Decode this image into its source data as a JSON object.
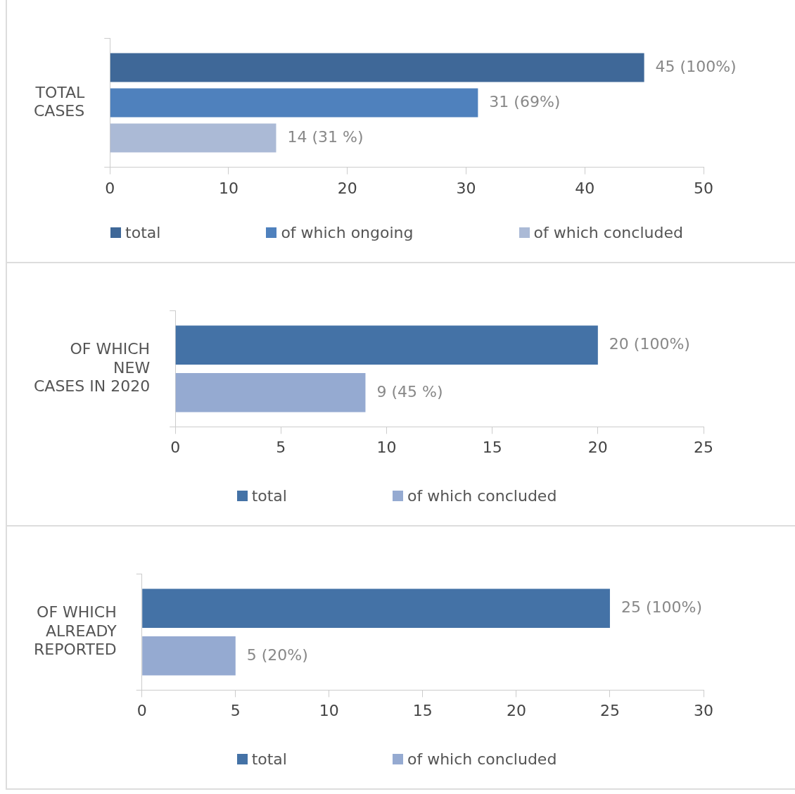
{
  "chart_data": [
    {
      "type": "bar",
      "orientation": "horizontal",
      "categories": [
        "TOTAL\nCASES"
      ],
      "xlim": [
        0,
        50
      ],
      "xticks": [
        0,
        10,
        20,
        30,
        40,
        50
      ],
      "grid": false,
      "legend": "bottom",
      "series": [
        {
          "name": "total",
          "color": "#3f6898",
          "values": [
            45
          ],
          "value_labels": [
            "45 (100%)"
          ]
        },
        {
          "name": "of which ongoing",
          "color": "#4f81bd",
          "values": [
            31
          ],
          "value_labels": [
            "31 (69%)"
          ]
        },
        {
          "name": "of which concluded",
          "color": "#abbad6",
          "values": [
            14
          ],
          "value_labels": [
            "14 (31 %)"
          ]
        }
      ]
    },
    {
      "type": "bar",
      "orientation": "horizontal",
      "categories": [
        "OF WHICH\nNEW\nCASES IN 2020"
      ],
      "xlim": [
        0,
        25
      ],
      "xticks": [
        0,
        5,
        10,
        15,
        20,
        25
      ],
      "grid": false,
      "legend": "bottom",
      "series": [
        {
          "name": "total",
          "color": "#4472a6",
          "values": [
            20
          ],
          "value_labels": [
            "20 (100%)"
          ]
        },
        {
          "name": "of which concluded",
          "color": "#95aad1",
          "values": [
            9
          ],
          "value_labels": [
            "9 (45 %)"
          ]
        }
      ]
    },
    {
      "type": "bar",
      "orientation": "horizontal",
      "categories": [
        "OF WHICH\nALREADY\nREPORTED"
      ],
      "xlim": [
        0,
        30
      ],
      "xticks": [
        0,
        5,
        10,
        15,
        20,
        25,
        30
      ],
      "grid": false,
      "legend": "bottom",
      "series": [
        {
          "name": "total",
          "color": "#4472a6",
          "values": [
            25
          ],
          "value_labels": [
            "25 (100%)"
          ]
        },
        {
          "name": "of which concluded",
          "color": "#95aad1",
          "values": [
            5
          ],
          "value_labels": [
            "5 (20%)"
          ]
        }
      ]
    }
  ]
}
